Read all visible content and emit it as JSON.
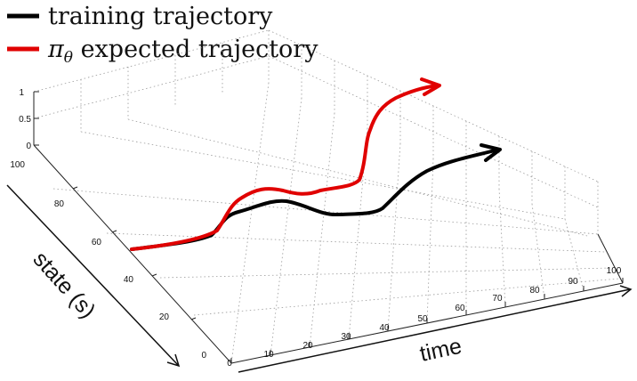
{
  "legend": {
    "items": [
      {
        "label": "training trajectory",
        "color": "#000000"
      },
      {
        "label_symbol": "π",
        "label_sub": "θ",
        "label_rest": " expected trajectory",
        "color": "#e00000"
      }
    ]
  },
  "axes": {
    "x_label": "time",
    "y_label": "state (s)",
    "x_ticks": [
      "0",
      "10",
      "20",
      "30",
      "40",
      "50",
      "60",
      "70",
      "80",
      "90",
      "100"
    ],
    "y_ticks": [
      "0",
      "20",
      "40",
      "60",
      "80",
      "100"
    ],
    "z_ticks": [
      "0",
      "0.5",
      "1"
    ]
  },
  "colors": {
    "training": "#000000",
    "expected": "#e00000",
    "grid": "#9a9a9a"
  }
}
